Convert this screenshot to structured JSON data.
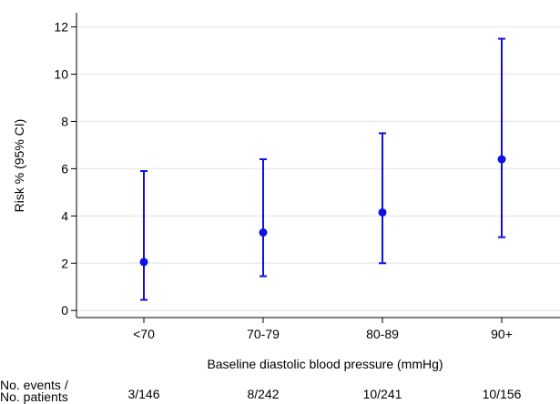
{
  "chart_data": {
    "type": "scatter",
    "subtype": "point-with-error-bars",
    "categories": [
      "<70",
      "70-79",
      "80-89",
      "90+"
    ],
    "values": [
      2.05,
      3.3,
      4.15,
      6.4
    ],
    "ci_lower": [
      0.45,
      1.45,
      2.0,
      3.1
    ],
    "ci_upper": [
      5.9,
      6.4,
      7.5,
      11.5
    ],
    "xlabel": "Baseline diastolic blood pressure (mmHg)",
    "ylabel": "Risk % (95% CI)",
    "ylim": [
      -0.3,
      12.6
    ],
    "yticks": [
      0,
      2,
      4,
      6,
      8,
      10,
      12
    ],
    "grid": true,
    "counts_label": [
      "No. events /",
      "No. patients"
    ],
    "counts": [
      "3/146",
      "8/242",
      "10/241",
      "10/156"
    ],
    "colors": {
      "series": "#1010e0",
      "grid": "#e6ecf0",
      "axis": "#000000"
    }
  }
}
